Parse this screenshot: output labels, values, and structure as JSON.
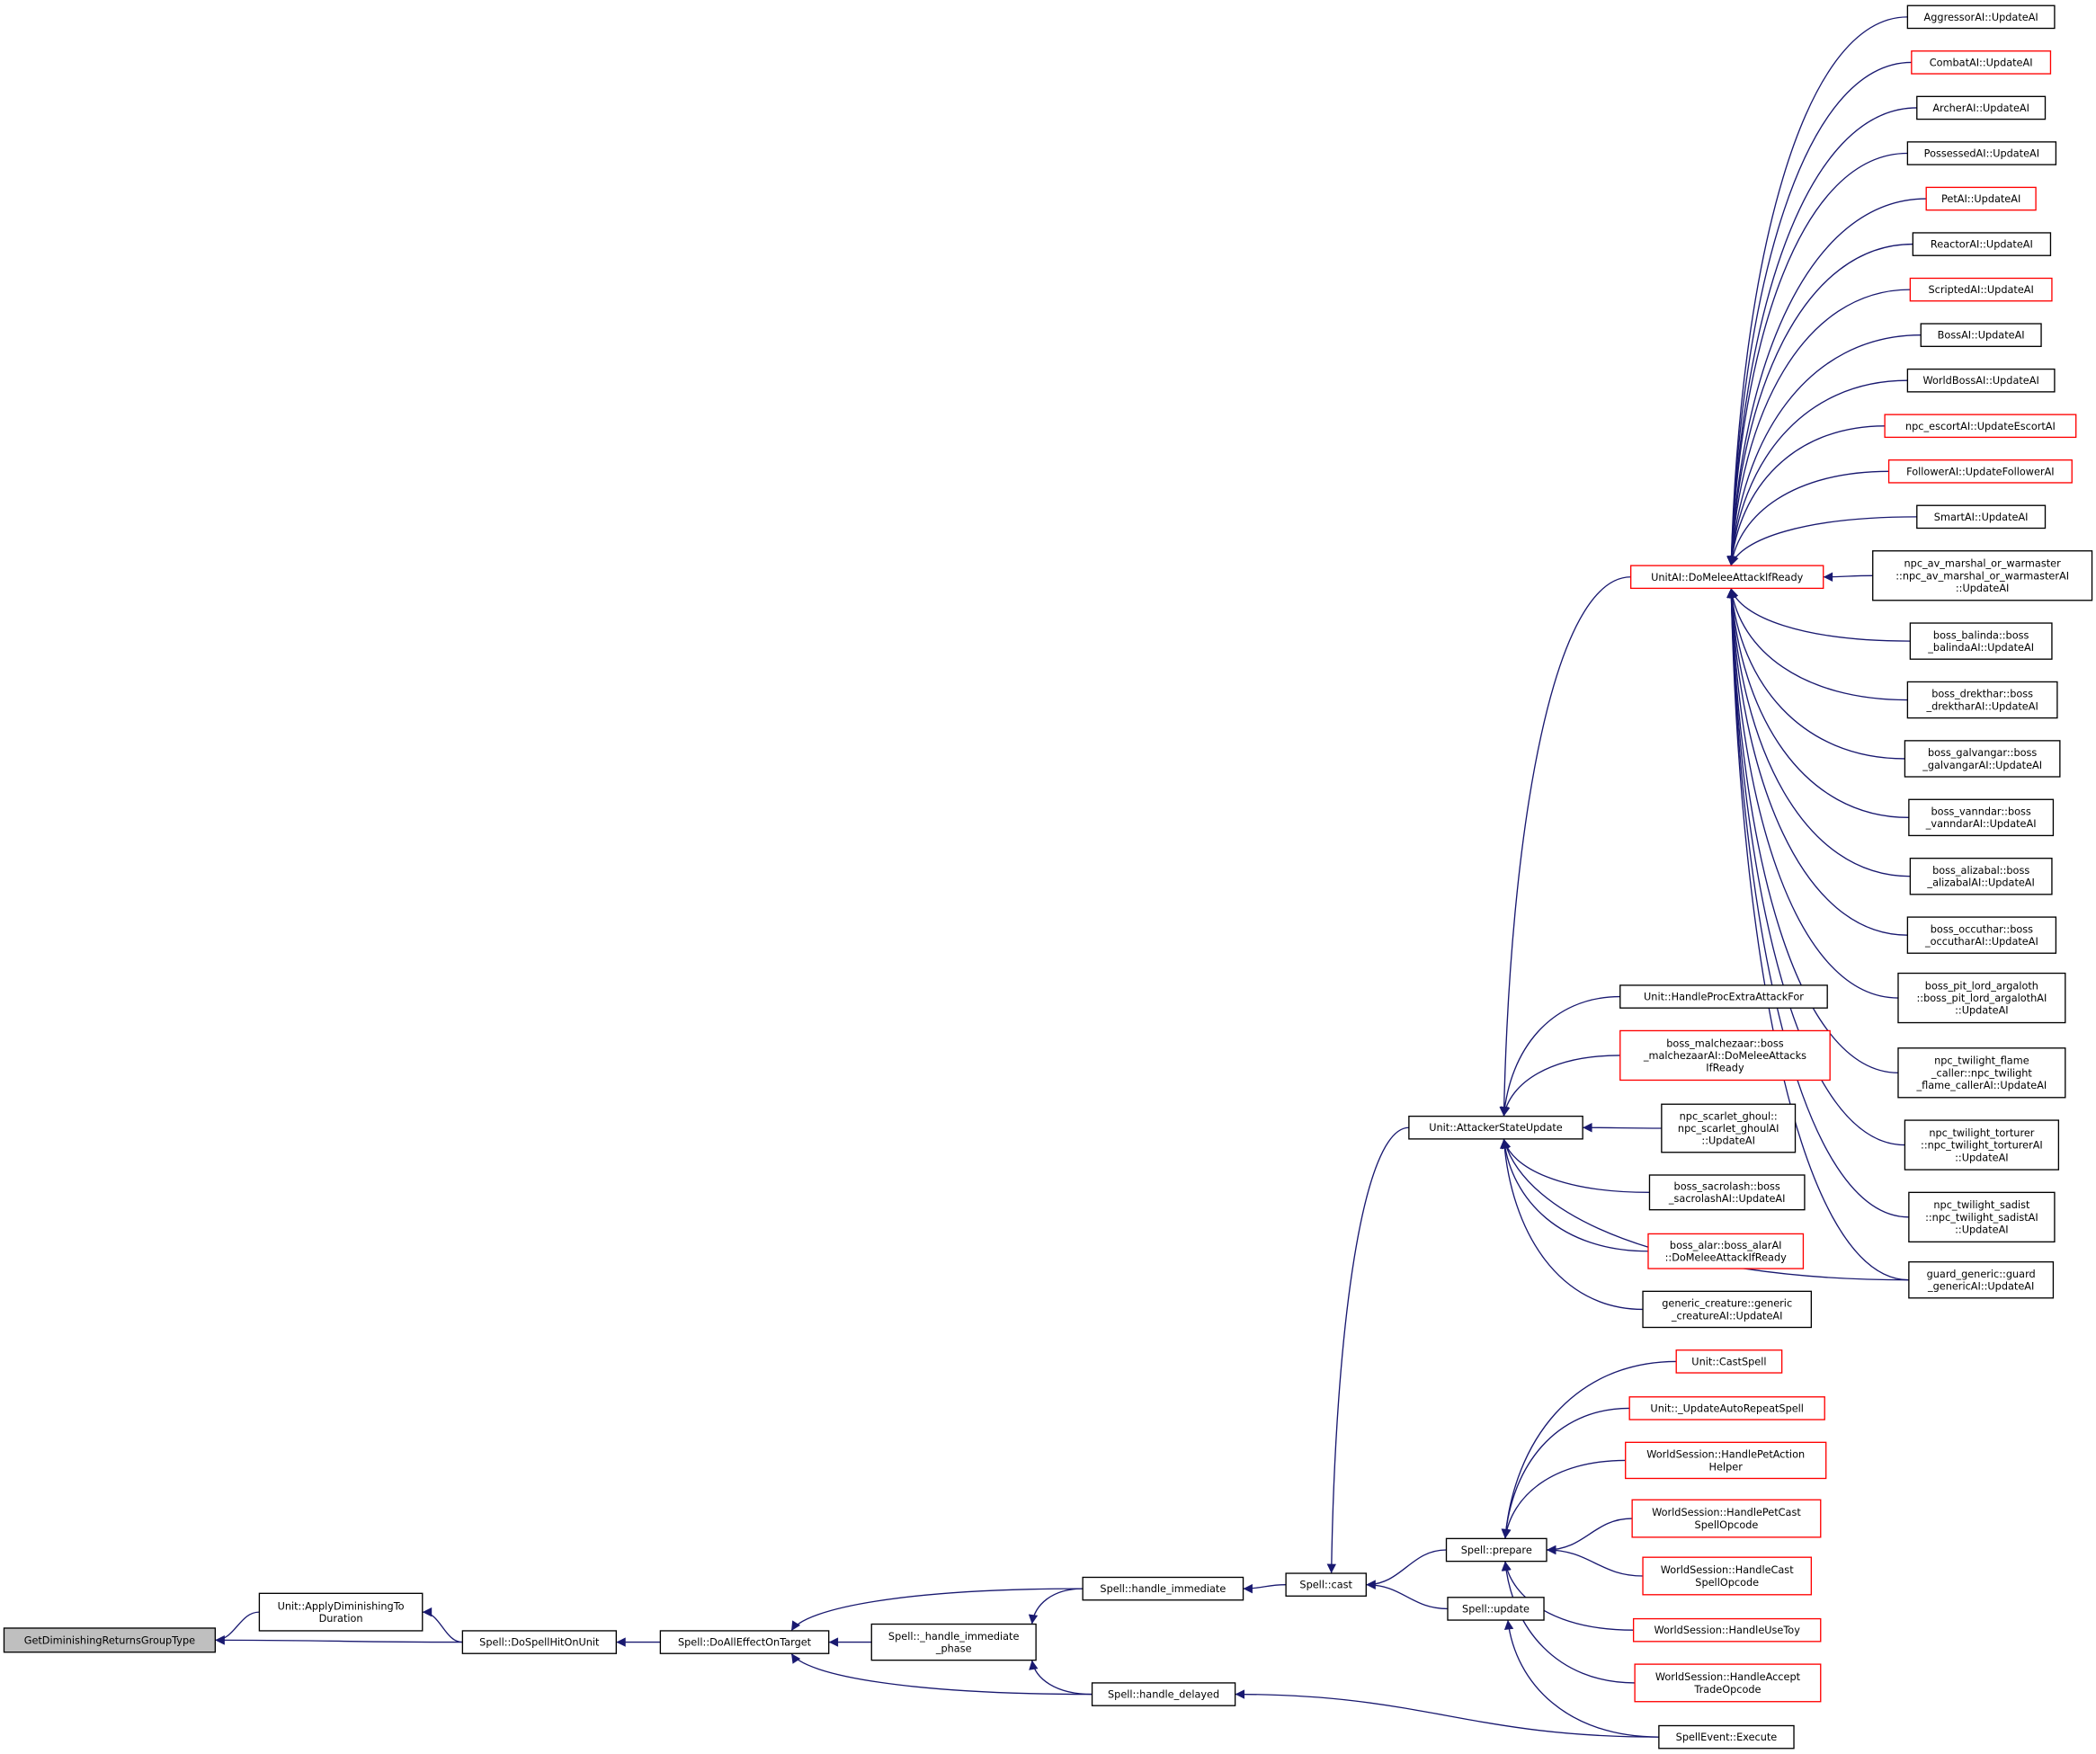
{
  "graph": {
    "edge_color": "#191970",
    "highlight_color": "#ff0000",
    "root_fill": "#bfbfbf",
    "nodes": [
      {
        "id": "getdim",
        "lines": [
          "GetDiminishingReturnsGroupType"
        ],
        "style": "root"
      },
      {
        "id": "applydim",
        "lines": [
          "Unit::ApplyDiminishingTo",
          "Duration"
        ],
        "style": "normal"
      },
      {
        "id": "dospellhit",
        "lines": [
          "Spell::DoSpellHitOnUnit"
        ],
        "style": "normal"
      },
      {
        "id": "doalleffect",
        "lines": [
          "Spell::DoAllEffectOnTarget"
        ],
        "style": "normal"
      },
      {
        "id": "immphase",
        "lines": [
          "Spell::_handle_immediate",
          "_phase"
        ],
        "style": "normal"
      },
      {
        "id": "handleimm",
        "lines": [
          "Spell::handle_immediate"
        ],
        "style": "normal"
      },
      {
        "id": "handledel",
        "lines": [
          "Spell::handle_delayed"
        ],
        "style": "normal"
      },
      {
        "id": "cast",
        "lines": [
          "Spell::cast"
        ],
        "style": "normal"
      },
      {
        "id": "prepare",
        "lines": [
          "Spell::prepare"
        ],
        "style": "normal"
      },
      {
        "id": "update",
        "lines": [
          "Spell::update"
        ],
        "style": "normal"
      },
      {
        "id": "execute",
        "lines": [
          "SpellEvent::Execute"
        ],
        "style": "normal"
      },
      {
        "id": "castspell",
        "lines": [
          "Unit::CastSpell"
        ],
        "style": "red"
      },
      {
        "id": "autorepeat",
        "lines": [
          "Unit::_UpdateAutoRepeatSpell"
        ],
        "style": "red"
      },
      {
        "id": "petaction",
        "lines": [
          "WorldSession::HandlePetAction",
          "Helper"
        ],
        "style": "red"
      },
      {
        "id": "petcast",
        "lines": [
          "WorldSession::HandlePetCast",
          "SpellOpcode"
        ],
        "style": "red"
      },
      {
        "id": "castop",
        "lines": [
          "WorldSession::HandleCast",
          "SpellOpcode"
        ],
        "style": "red"
      },
      {
        "id": "usetoy",
        "lines": [
          "WorldSession::HandleUseToy"
        ],
        "style": "red"
      },
      {
        "id": "accepttrade",
        "lines": [
          "WorldSession::HandleAccept",
          "TradeOpcode"
        ],
        "style": "red"
      },
      {
        "id": "attacker",
        "lines": [
          "Unit::AttackerStateUpdate"
        ],
        "style": "normal"
      },
      {
        "id": "procextra",
        "lines": [
          "Unit::HandleProcExtraAttackFor"
        ],
        "style": "normal"
      },
      {
        "id": "malchezaar",
        "lines": [
          "boss_malchezaar::boss",
          "_malchezaarAI::DoMeleeAttacks",
          "IfReady"
        ],
        "style": "red"
      },
      {
        "id": "scarletghoul",
        "lines": [
          "npc_scarlet_ghoul::",
          "npc_scarlet_ghoulAI",
          "::UpdateAI"
        ],
        "style": "normal"
      },
      {
        "id": "sacrolash",
        "lines": [
          "boss_sacrolash::boss",
          "_sacrolashAI::UpdateAI"
        ],
        "style": "normal"
      },
      {
        "id": "alar",
        "lines": [
          "boss_alar::boss_alarAI",
          "::DoMeleeAttackIfReady"
        ],
        "style": "red"
      },
      {
        "id": "genericcreature",
        "lines": [
          "generic_creature::generic",
          "_creatureAI::UpdateAI"
        ],
        "style": "normal"
      },
      {
        "id": "unitai",
        "lines": [
          "UnitAI::DoMeleeAttackIfReady"
        ],
        "style": "red"
      },
      {
        "id": "aggressor",
        "lines": [
          "AggressorAI::UpdateAI"
        ],
        "style": "normal"
      },
      {
        "id": "combat",
        "lines": [
          "CombatAI::UpdateAI"
        ],
        "style": "red"
      },
      {
        "id": "archer",
        "lines": [
          "ArcherAI::UpdateAI"
        ],
        "style": "normal"
      },
      {
        "id": "possessed",
        "lines": [
          "PossessedAI::UpdateAI"
        ],
        "style": "normal"
      },
      {
        "id": "pet",
        "lines": [
          "PetAI::UpdateAI"
        ],
        "style": "red"
      },
      {
        "id": "reactor",
        "lines": [
          "ReactorAI::UpdateAI"
        ],
        "style": "normal"
      },
      {
        "id": "scripted",
        "lines": [
          "ScriptedAI::UpdateAI"
        ],
        "style": "red"
      },
      {
        "id": "boss",
        "lines": [
          "BossAI::UpdateAI"
        ],
        "style": "normal"
      },
      {
        "id": "worldboss",
        "lines": [
          "WorldBossAI::UpdateAI"
        ],
        "style": "normal"
      },
      {
        "id": "escort",
        "lines": [
          "npc_escortAI::UpdateEscortAI"
        ],
        "style": "red"
      },
      {
        "id": "follower",
        "lines": [
          "FollowerAI::UpdateFollowerAI"
        ],
        "style": "red"
      },
      {
        "id": "smart",
        "lines": [
          "SmartAI::UpdateAI"
        ],
        "style": "normal"
      },
      {
        "id": "avmarshal",
        "lines": [
          "npc_av_marshal_or_warmaster",
          "::npc_av_marshal_or_warmasterAI",
          "::UpdateAI"
        ],
        "style": "normal"
      },
      {
        "id": "balinda",
        "lines": [
          "boss_balinda::boss",
          "_balindaAI::UpdateAI"
        ],
        "style": "normal"
      },
      {
        "id": "drekthar",
        "lines": [
          "boss_drekthar::boss",
          "_drektharAI::UpdateAI"
        ],
        "style": "normal"
      },
      {
        "id": "galvangar",
        "lines": [
          "boss_galvangar::boss",
          "_galvangarAI::UpdateAI"
        ],
        "style": "normal"
      },
      {
        "id": "vanndar",
        "lines": [
          "boss_vanndar::boss",
          "_vanndarAI::UpdateAI"
        ],
        "style": "normal"
      },
      {
        "id": "alizabal",
        "lines": [
          "boss_alizabal::boss",
          "_alizabalAI::UpdateAI"
        ],
        "style": "normal"
      },
      {
        "id": "occuthar",
        "lines": [
          "boss_occuthar::boss",
          "_occutharAI::UpdateAI"
        ],
        "style": "normal"
      },
      {
        "id": "pitlord",
        "lines": [
          "boss_pit_lord_argaloth",
          "::boss_pit_lord_argalothAI",
          "::UpdateAI"
        ],
        "style": "normal"
      },
      {
        "id": "flamecaller",
        "lines": [
          "npc_twilight_flame",
          "_caller::npc_twilight",
          "_flame_callerAI::UpdateAI"
        ],
        "style": "normal"
      },
      {
        "id": "torturer",
        "lines": [
          "npc_twilight_torturer",
          "::npc_twilight_torturerAI",
          "::UpdateAI"
        ],
        "style": "normal"
      },
      {
        "id": "sadist",
        "lines": [
          "npc_twilight_sadist",
          "::npc_twilight_sadistAI",
          "::UpdateAI"
        ],
        "style": "normal"
      },
      {
        "id": "guardgeneric",
        "lines": [
          "guard_generic::guard",
          "_genericAI::UpdateAI"
        ],
        "style": "normal"
      }
    ],
    "edges": [
      {
        "from": "applydim",
        "to": "getdim"
      },
      {
        "from": "dospellhit",
        "to": "getdim"
      },
      {
        "from": "dospellhit",
        "to": "applydim"
      },
      {
        "from": "doalleffect",
        "to": "dospellhit"
      },
      {
        "from": "immphase",
        "to": "doalleffect"
      },
      {
        "from": "handleimm",
        "to": "doalleffect"
      },
      {
        "from": "handledel",
        "to": "doalleffect"
      },
      {
        "from": "handleimm",
        "to": "immphase"
      },
      {
        "from": "handledel",
        "to": "immphase"
      },
      {
        "from": "cast",
        "to": "handleimm"
      },
      {
        "from": "execute",
        "to": "handledel"
      },
      {
        "from": "prepare",
        "to": "cast"
      },
      {
        "from": "update",
        "to": "cast"
      },
      {
        "from": "attacker",
        "to": "cast"
      },
      {
        "from": "execute",
        "to": "update"
      },
      {
        "from": "castspell",
        "to": "prepare"
      },
      {
        "from": "autorepeat",
        "to": "prepare"
      },
      {
        "from": "petaction",
        "to": "prepare"
      },
      {
        "from": "petcast",
        "to": "prepare"
      },
      {
        "from": "castop",
        "to": "prepare"
      },
      {
        "from": "usetoy",
        "to": "prepare"
      },
      {
        "from": "accepttrade",
        "to": "prepare"
      },
      {
        "from": "unitai",
        "to": "attacker"
      },
      {
        "from": "procextra",
        "to": "attacker"
      },
      {
        "from": "malchezaar",
        "to": "attacker"
      },
      {
        "from": "scarletghoul",
        "to": "attacker"
      },
      {
        "from": "sacrolash",
        "to": "attacker"
      },
      {
        "from": "alar",
        "to": "attacker"
      },
      {
        "from": "genericcreature",
        "to": "attacker"
      },
      {
        "from": "guardgeneric",
        "to": "attacker"
      },
      {
        "from": "aggressor",
        "to": "unitai"
      },
      {
        "from": "combat",
        "to": "unitai"
      },
      {
        "from": "archer",
        "to": "unitai"
      },
      {
        "from": "possessed",
        "to": "unitai"
      },
      {
        "from": "pet",
        "to": "unitai"
      },
      {
        "from": "reactor",
        "to": "unitai"
      },
      {
        "from": "scripted",
        "to": "unitai"
      },
      {
        "from": "boss",
        "to": "unitai"
      },
      {
        "from": "worldboss",
        "to": "unitai"
      },
      {
        "from": "escort",
        "to": "unitai"
      },
      {
        "from": "follower",
        "to": "unitai"
      },
      {
        "from": "smart",
        "to": "unitai"
      },
      {
        "from": "avmarshal",
        "to": "unitai"
      },
      {
        "from": "balinda",
        "to": "unitai"
      },
      {
        "from": "drekthar",
        "to": "unitai"
      },
      {
        "from": "galvangar",
        "to": "unitai"
      },
      {
        "from": "vanndar",
        "to": "unitai"
      },
      {
        "from": "alizabal",
        "to": "unitai"
      },
      {
        "from": "occuthar",
        "to": "unitai"
      },
      {
        "from": "pitlord",
        "to": "unitai"
      },
      {
        "from": "flamecaller",
        "to": "unitai"
      },
      {
        "from": "torturer",
        "to": "unitai"
      },
      {
        "from": "sadist",
        "to": "unitai"
      },
      {
        "from": "guardgeneric",
        "to": "unitai"
      }
    ]
  }
}
